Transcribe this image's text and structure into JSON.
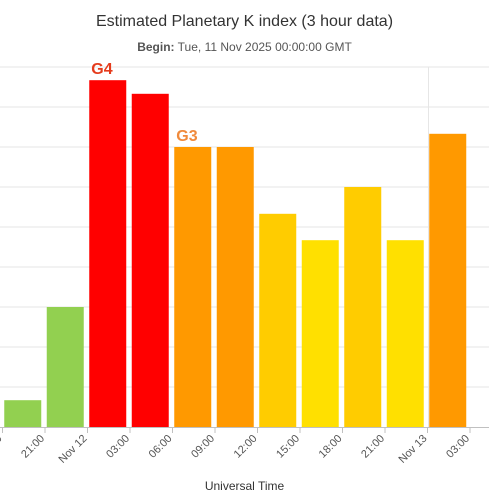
{
  "chart_data": {
    "type": "bar",
    "title": "Estimated Planetary K index (3 hour data)",
    "subtitle_label": "Begin:",
    "subtitle_value": "Tue, 11 Nov 2025 00:00:00 GMT",
    "xlabel": "Universal Time",
    "ylabel": "",
    "ylim": [
      0,
      9
    ],
    "grid": true,
    "x_ticks": [
      "0",
      "21:00",
      "Nov 12",
      "03:00",
      "06:00",
      "09:00",
      "12:00",
      "15:00",
      "18:00",
      "21:00",
      "Nov 13",
      "03:00"
    ],
    "values": [
      0.67,
      3.0,
      8.67,
      8.33,
      7.0,
      7.0,
      5.33,
      4.67,
      6.0,
      4.67,
      7.33
    ],
    "colors": [
      "#92D050",
      "#92D050",
      "#FF0000",
      "#FF0000",
      "#FF9900",
      "#FF9900",
      "#FFCC00",
      "#FFE000",
      "#FFCC00",
      "#FFE000",
      "#FF9900"
    ],
    "annotations": [
      {
        "label": "G4",
        "bar": 2,
        "color": "#E53B1C"
      },
      {
        "label": "G3",
        "bar": 4,
        "color": "#F08A3C"
      }
    ]
  }
}
